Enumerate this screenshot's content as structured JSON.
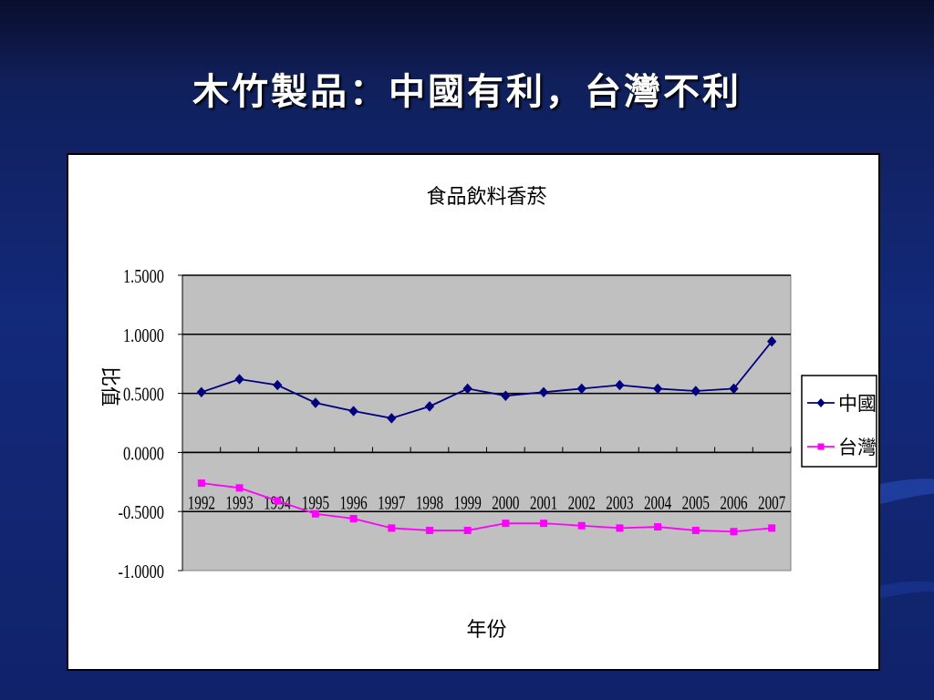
{
  "slide": {
    "title": "木竹製品：中國有利，台灣不利"
  },
  "chart_data": {
    "type": "line",
    "title": "食品飲料香菸",
    "xlabel": "年份",
    "ylabel": "比值",
    "ylim": [
      -1.0,
      1.5
    ],
    "yticks": [
      "1.5000",
      "1.0000",
      "0.5000",
      "0.0000",
      "-0.5000",
      "-1.0000"
    ],
    "ytick_values": [
      1.5,
      1.0,
      0.5,
      0.0,
      -0.5,
      -1.0
    ],
    "categories": [
      "1992",
      "1993",
      "1994",
      "1995",
      "1996",
      "1997",
      "1998",
      "1999",
      "2000",
      "2001",
      "2002",
      "2003",
      "2004",
      "2005",
      "2006",
      "2007"
    ],
    "grid": true,
    "legend_position": "right",
    "plot_background": "#c0c0c0",
    "series": [
      {
        "name": "中國",
        "color": "#000080",
        "marker": "diamond",
        "values": [
          0.51,
          0.62,
          0.57,
          0.42,
          0.35,
          0.29,
          0.39,
          0.54,
          0.48,
          0.51,
          0.54,
          0.57,
          0.54,
          0.52,
          0.54,
          0.94
        ]
      },
      {
        "name": "台灣",
        "color": "#ff00ff",
        "marker": "square",
        "values": [
          -0.26,
          -0.3,
          -0.41,
          -0.52,
          -0.56,
          -0.64,
          -0.66,
          -0.66,
          -0.6,
          -0.6,
          -0.62,
          -0.64,
          -0.63,
          -0.66,
          -0.67,
          -0.64
        ]
      }
    ]
  }
}
